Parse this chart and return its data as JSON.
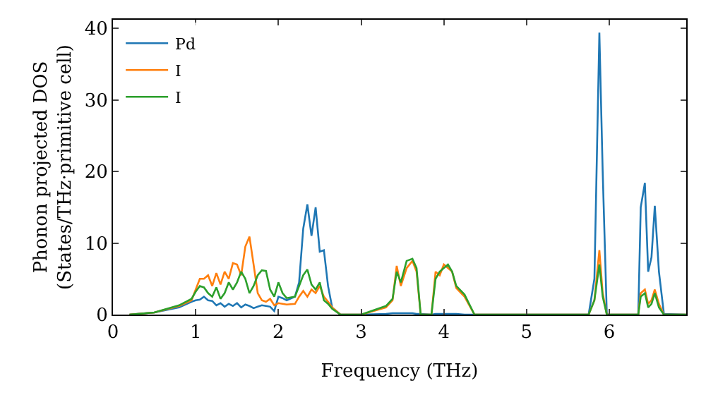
{
  "chart_data": {
    "type": "line",
    "xlabel": "Frequency (THz)",
    "ylabel": "Phonon projected DOS\n(States/THz·primitive cell)",
    "x": [
      0.2,
      0.5,
      0.8,
      0.95,
      1.0,
      1.05,
      1.1,
      1.15,
      1.2,
      1.25,
      1.3,
      1.35,
      1.4,
      1.45,
      1.5,
      1.55,
      1.6,
      1.65,
      1.7,
      1.75,
      1.8,
      1.85,
      1.9,
      1.95,
      2.0,
      2.05,
      2.1,
      2.2,
      2.25,
      2.3,
      2.35,
      2.4,
      2.45,
      2.5,
      2.55,
      2.6,
      2.65,
      2.75,
      3.0,
      3.3,
      3.38,
      3.43,
      3.48,
      3.55,
      3.62,
      3.67,
      3.72,
      3.85,
      3.9,
      3.95,
      4.0,
      4.05,
      4.1,
      4.15,
      4.25,
      4.37,
      5.75,
      5.82,
      5.88,
      5.92,
      5.97,
      6.35,
      6.38,
      6.43,
      6.47,
      6.51,
      6.55,
      6.6,
      6.66,
      6.93
    ],
    "series": [
      {
        "name": "Pd",
        "color": "#1f77b4",
        "values": [
          0,
          0.3,
          1.0,
          1.8,
          2.0,
          2.1,
          2.5,
          2.0,
          1.9,
          1.3,
          1.6,
          1.1,
          1.5,
          1.2,
          1.6,
          1.0,
          1.4,
          1.2,
          0.9,
          1.1,
          1.3,
          1.2,
          1.1,
          0.5,
          2.5,
          2.3,
          2.0,
          2.5,
          4.5,
          12,
          15.4,
          11,
          15,
          8.8,
          9,
          4,
          1,
          0,
          0,
          0.1,
          0.2,
          0.2,
          0.2,
          0.2,
          0.2,
          0.1,
          0.1,
          0,
          0.1,
          0.1,
          0.1,
          0.1,
          0.1,
          0.1,
          0,
          0,
          0,
          5,
          39.4,
          20,
          0,
          0,
          15,
          18.4,
          6,
          8,
          15.2,
          6,
          0.1,
          0
        ]
      },
      {
        "name": "I",
        "color": "#ff7f0e",
        "values": [
          0,
          0.3,
          1.2,
          2,
          3.5,
          5,
          5,
          5.5,
          4,
          5.8,
          4.2,
          6,
          5,
          7.2,
          7,
          5.5,
          9.5,
          10.9,
          7,
          3,
          2,
          1.8,
          2.2,
          1.3,
          1.6,
          1.5,
          1.4,
          1.5,
          2.5,
          3.3,
          2.5,
          3.5,
          3,
          4,
          2.5,
          1.8,
          1,
          0,
          0,
          1,
          2,
          6.8,
          4,
          6.5,
          7.5,
          6,
          0,
          0,
          6,
          5.5,
          7,
          6.5,
          6,
          3.7,
          2.5,
          0,
          0,
          2,
          9,
          3,
          0,
          0,
          3,
          3.5,
          1.5,
          2,
          3.5,
          1.5,
          0,
          0
        ]
      },
      {
        "name": "I",
        "color": "#2ca02c",
        "values": [
          0,
          0.3,
          1.3,
          2.2,
          3.2,
          4,
          3.8,
          3,
          2.5,
          3.8,
          2.2,
          3,
          4.5,
          3.5,
          4.5,
          6,
          5,
          3,
          4,
          5.5,
          6.2,
          6.1,
          3.5,
          2.5,
          4.5,
          3,
          2.3,
          2.5,
          4,
          5.5,
          6.3,
          4.2,
          3.5,
          4.5,
          2,
          1.5,
          0.8,
          0,
          0,
          1.2,
          2.2,
          6,
          4.5,
          7.5,
          7.8,
          6.5,
          0,
          0,
          5,
          6,
          6.5,
          7,
          6,
          4,
          2.8,
          0,
          0,
          2,
          7,
          2.5,
          0,
          0,
          2.5,
          3,
          1,
          1.5,
          3,
          1,
          0,
          0
        ]
      }
    ],
    "xlim": [
      0,
      6.93
    ],
    "ylim": [
      0,
      41.2
    ],
    "xticks": [
      0,
      1,
      2,
      3,
      4,
      5,
      6
    ],
    "yticks": [
      0,
      10,
      20,
      30,
      40
    ],
    "legend": "top left",
    "marker": "none",
    "line_style": "solid"
  }
}
